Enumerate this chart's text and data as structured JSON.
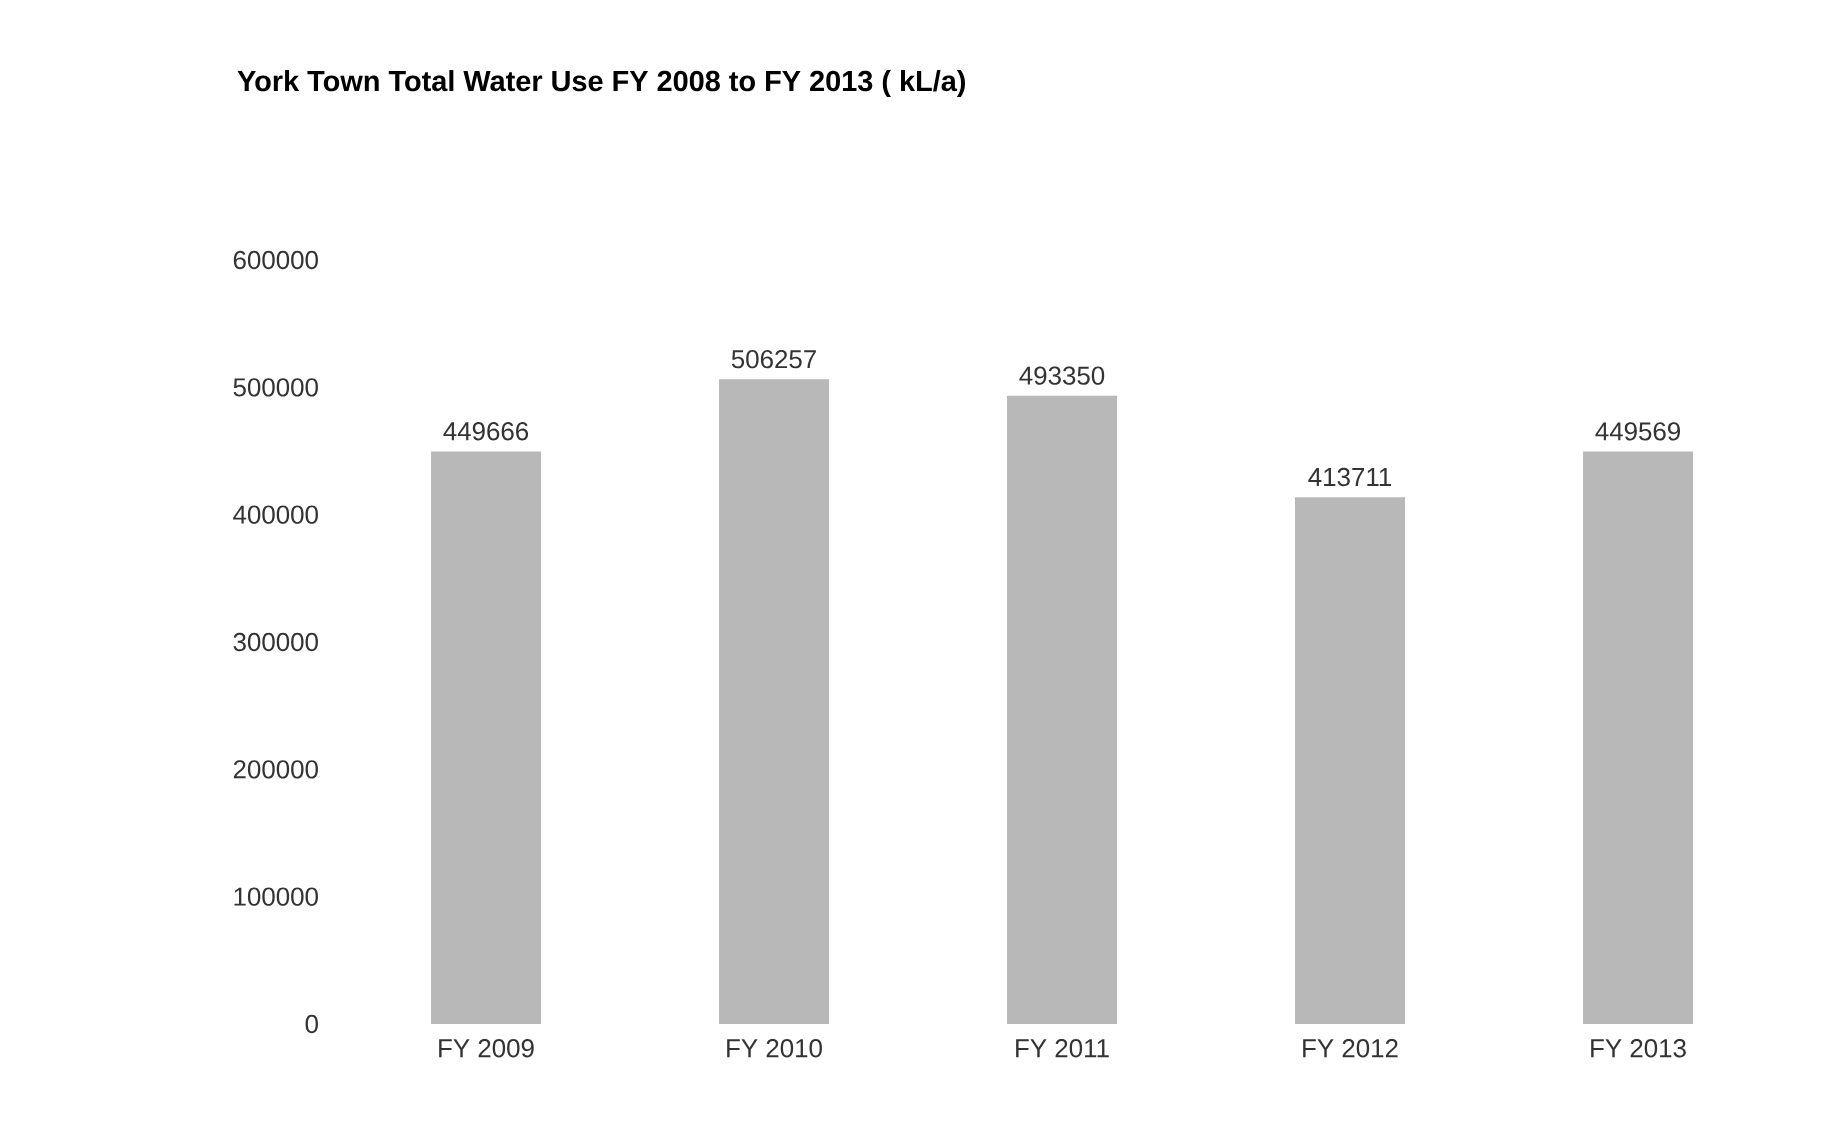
{
  "chart_data": {
    "type": "bar",
    "title": "York Town Total Water Use FY 2008 to FY 2013 ( kL/a)",
    "categories": [
      "FY 2009",
      "FY 2010",
      "FY 2011",
      "FY 2012",
      "FY 2013"
    ],
    "values": [
      449666,
      506257,
      493350,
      413711,
      449569
    ],
    "color": "#b8b8b8",
    "ylim": [
      0,
      600000
    ],
    "yticks": [
      0,
      100000,
      200000,
      300000,
      400000,
      500000,
      600000
    ],
    "data_labels": true,
    "grid": false
  }
}
